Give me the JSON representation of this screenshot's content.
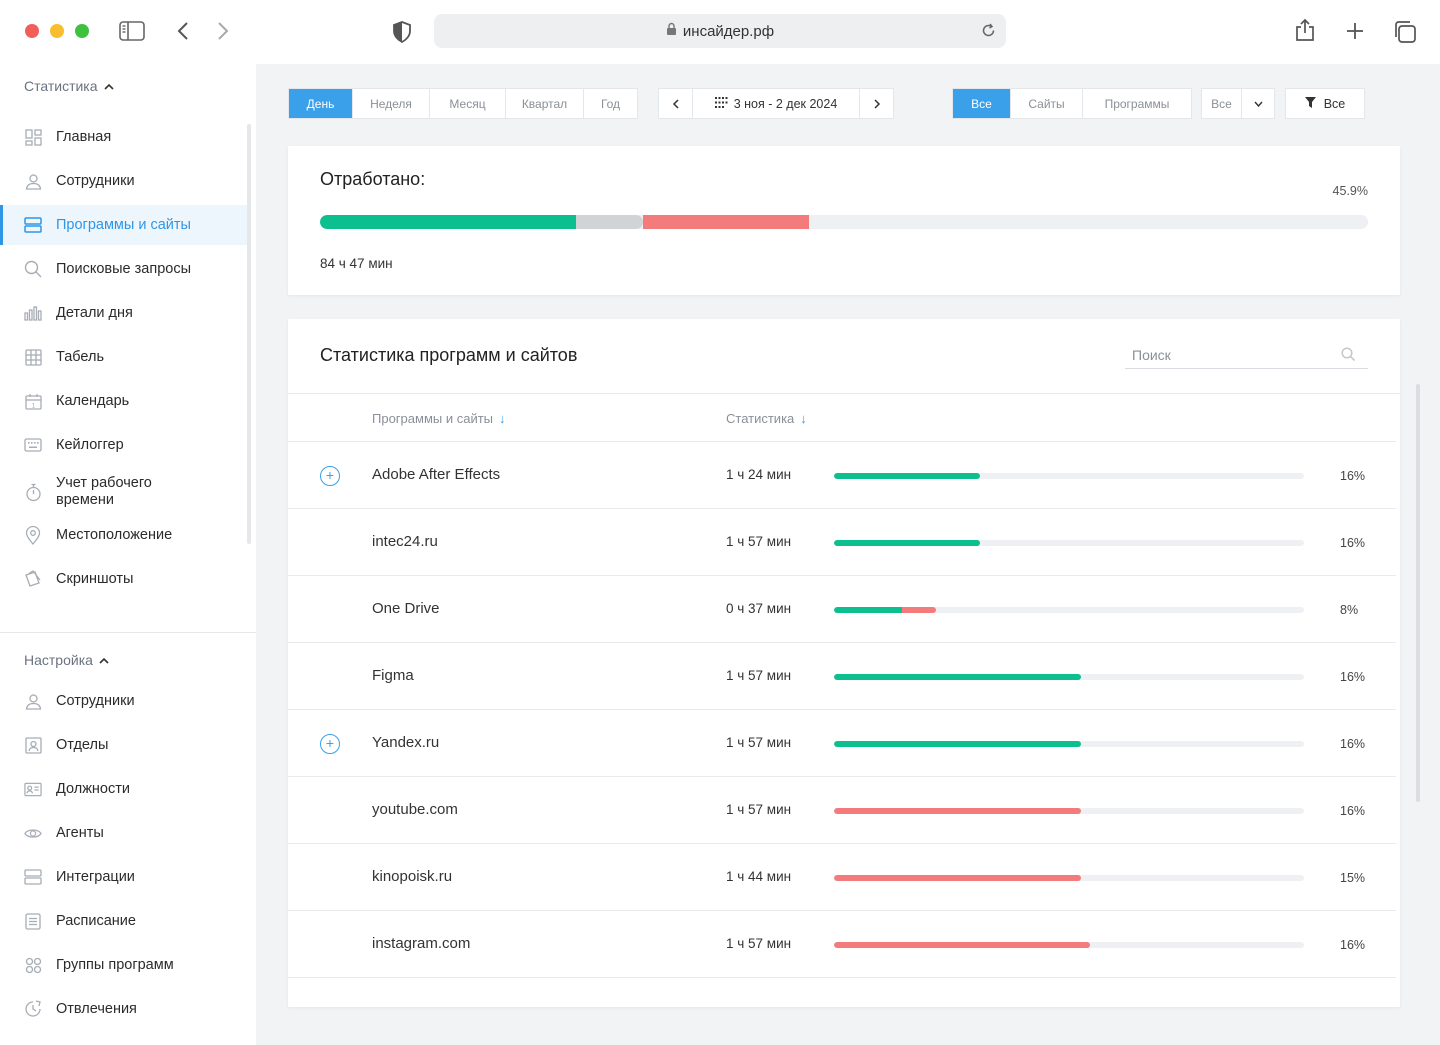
{
  "browser": {
    "url": "инсайдер.рф"
  },
  "colors": {
    "accent": "#3aa0ea",
    "productive": "#0cbf8e",
    "neutral": "#d1d3d6",
    "unproductive": "#f47b7b"
  },
  "sidebar": {
    "stats_section": "Статистика",
    "stats_items": [
      {
        "label": "Главная",
        "icon": "dashboard-icon"
      },
      {
        "label": "Сотрудники",
        "icon": "user-icon"
      },
      {
        "label": "Программы и сайты",
        "icon": "apps-icon",
        "active": true
      },
      {
        "label": "Поисковые запросы",
        "icon": "search-icon"
      },
      {
        "label": "Детали дня",
        "icon": "bar-chart-icon"
      },
      {
        "label": "Табель",
        "icon": "grid-icon"
      },
      {
        "label": "Календарь",
        "icon": "calendar-icon"
      },
      {
        "label": "Кейлоггер",
        "icon": "keyboard-icon"
      },
      {
        "label": "Учет рабочего времени",
        "icon": "stopwatch-icon"
      },
      {
        "label": "Местоположение",
        "icon": "location-icon"
      },
      {
        "label": "Скриншоты",
        "icon": "screenshots-icon"
      }
    ],
    "settings_section": "Настройка",
    "settings_items": [
      {
        "label": "Сотрудники",
        "icon": "user-icon"
      },
      {
        "label": "Отделы",
        "icon": "department-icon"
      },
      {
        "label": "Должности",
        "icon": "id-card-icon"
      },
      {
        "label": "Агенты",
        "icon": "eye-icon"
      },
      {
        "label": "Интеграции",
        "icon": "integration-icon"
      },
      {
        "label": "Расписание",
        "icon": "schedule-icon"
      },
      {
        "label": "Группы программ",
        "icon": "groups-icon"
      },
      {
        "label": "Отвлечения",
        "icon": "distraction-icon"
      }
    ]
  },
  "toolbar": {
    "periods": [
      "День",
      "Неделя",
      "Месяц",
      "Квартал",
      "Год"
    ],
    "active_period": "День",
    "date_range": "3 ноя - 2 дек 2024",
    "types": [
      "Все",
      "Сайты",
      "Программы"
    ],
    "active_type": "Все",
    "dropdown_value": "Все",
    "filter_label": "Все"
  },
  "worked": {
    "title": "Отработано:",
    "percent": "45.9%",
    "time": "84 ч 47 мин",
    "segments": [
      {
        "kind": "productive",
        "fraction": 0.244
      },
      {
        "kind": "neutral",
        "fraction": 0.064
      },
      {
        "kind": "unproductive",
        "fraction": 0.158
      }
    ]
  },
  "stats": {
    "title": "Статистика программ и сайтов",
    "search_placeholder": "Поиск",
    "col_name": "Программы и сайты",
    "col_stat": "Статистика",
    "rows": [
      {
        "name": "Adobe After Effects",
        "time": "1 ч 24 мин",
        "percent": "16%",
        "expandable": true,
        "bars": [
          {
            "kind": "productive",
            "fraction": 0.31
          }
        ]
      },
      {
        "name": "intec24.ru",
        "time": "1 ч 57 мин",
        "percent": "16%",
        "expandable": false,
        "bars": [
          {
            "kind": "productive",
            "fraction": 0.31
          }
        ]
      },
      {
        "name": "One Drive",
        "time": "0 ч 37 мин",
        "percent": "8%",
        "expandable": false,
        "bars": [
          {
            "kind": "productive",
            "fraction": 0.145
          },
          {
            "kind": "unproductive",
            "fraction": 0.073
          }
        ]
      },
      {
        "name": "Figma",
        "time": "1 ч 57 мин",
        "percent": "16%",
        "expandable": false,
        "bars": [
          {
            "kind": "productive",
            "fraction": 0.525
          }
        ]
      },
      {
        "name": "Yandex.ru",
        "time": "1 ч 57 мин",
        "percent": "16%",
        "expandable": true,
        "bars": [
          {
            "kind": "productive",
            "fraction": 0.525
          }
        ]
      },
      {
        "name": "youtube.com",
        "time": "1 ч 57 мин",
        "percent": "16%",
        "expandable": false,
        "bars": [
          {
            "kind": "unproductive",
            "fraction": 0.525
          }
        ]
      },
      {
        "name": "kinopoisk.ru",
        "time": "1 ч 44 мин",
        "percent": "15%",
        "expandable": false,
        "bars": [
          {
            "kind": "unproductive",
            "fraction": 0.525
          }
        ]
      },
      {
        "name": "instagram.com",
        "time": "1 ч 57 мин",
        "percent": "16%",
        "expandable": false,
        "bars": [
          {
            "kind": "unproductive",
            "fraction": 0.545
          }
        ]
      }
    ]
  }
}
